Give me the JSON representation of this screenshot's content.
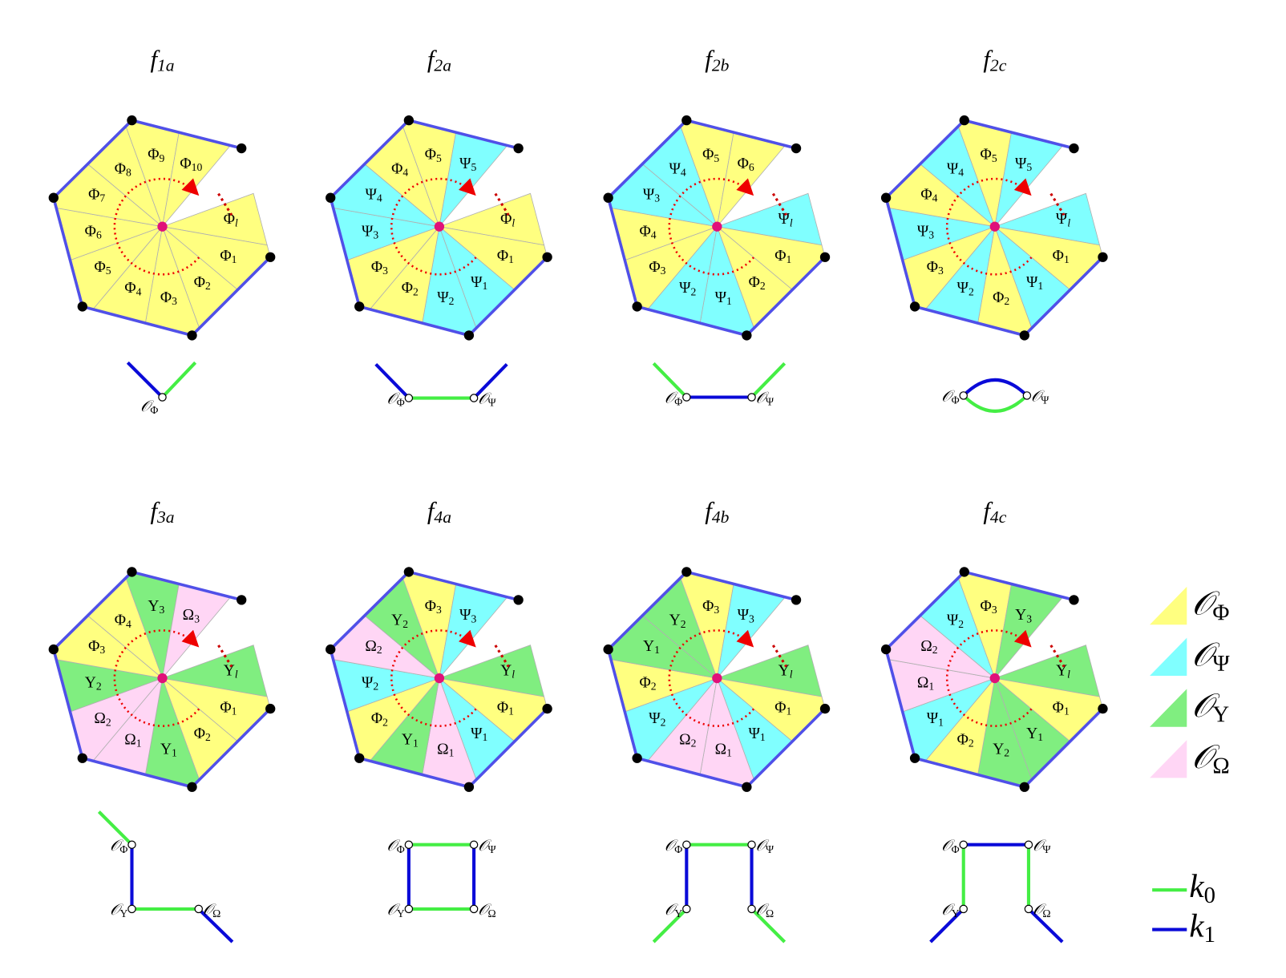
{
  "panels": [
    {
      "title": {
        "sym": "f",
        "sub": "1a"
      },
      "wedges": [
        {
          "sym": "Φ",
          "sub": "l"
        },
        {
          "sym": "Φ",
          "sub": "1"
        },
        {
          "sym": "Φ",
          "sub": "2"
        },
        {
          "sym": "Φ",
          "sub": "3"
        },
        {
          "sym": "Φ",
          "sub": "4"
        },
        {
          "sym": "Φ",
          "sub": "5"
        },
        {
          "sym": "Φ",
          "sub": "6"
        },
        {
          "sym": "Φ",
          "sub": "7"
        },
        {
          "sym": "Φ",
          "sub": "8"
        },
        {
          "sym": "Φ",
          "sub": "9"
        },
        {
          "sym": "Φ",
          "sub": "10"
        }
      ],
      "graph_nodes": [
        {
          "sym": "𝒪",
          "sub": "Φ"
        }
      ]
    },
    {
      "title": {
        "sym": "f",
        "sub": "2a"
      },
      "wedges": [
        {
          "sym": "Φ",
          "sub": "l"
        },
        {
          "sym": "Φ",
          "sub": "1"
        },
        {
          "sym": "Ψ",
          "sub": "1"
        },
        {
          "sym": "Ψ",
          "sub": "2"
        },
        {
          "sym": "Φ",
          "sub": "2"
        },
        {
          "sym": "Φ",
          "sub": "3"
        },
        {
          "sym": "Ψ",
          "sub": "3"
        },
        {
          "sym": "Ψ",
          "sub": "4"
        },
        {
          "sym": "Φ",
          "sub": "4"
        },
        {
          "sym": "Φ",
          "sub": "5"
        },
        {
          "sym": "Ψ",
          "sub": "5"
        }
      ],
      "graph_nodes": [
        {
          "sym": "𝒪",
          "sub": "Φ"
        },
        {
          "sym": "𝒪",
          "sub": "Ψ"
        }
      ]
    },
    {
      "title": {
        "sym": "f",
        "sub": "2b"
      },
      "wedges": [
        {
          "sym": "Ψ",
          "sub": "l"
        },
        {
          "sym": "Φ",
          "sub": "1"
        },
        {
          "sym": "Φ",
          "sub": "2"
        },
        {
          "sym": "Ψ",
          "sub": "1"
        },
        {
          "sym": "Ψ",
          "sub": "2"
        },
        {
          "sym": "Φ",
          "sub": "3"
        },
        {
          "sym": "Φ",
          "sub": "4"
        },
        {
          "sym": "Ψ",
          "sub": "3"
        },
        {
          "sym": "Ψ",
          "sub": "4"
        },
        {
          "sym": "Φ",
          "sub": "5"
        },
        {
          "sym": "Φ",
          "sub": "6"
        }
      ],
      "graph_nodes": [
        {
          "sym": "𝒪",
          "sub": "Φ"
        },
        {
          "sym": "𝒪",
          "sub": "Ψ"
        }
      ]
    },
    {
      "title": {
        "sym": "f",
        "sub": "2c"
      },
      "wedges": [
        {
          "sym": "Ψ",
          "sub": "l"
        },
        {
          "sym": "Φ",
          "sub": "1"
        },
        {
          "sym": "Ψ",
          "sub": "1"
        },
        {
          "sym": "Φ",
          "sub": "2"
        },
        {
          "sym": "Ψ",
          "sub": "2"
        },
        {
          "sym": "Φ",
          "sub": "3"
        },
        {
          "sym": "Ψ",
          "sub": "3"
        },
        {
          "sym": "Φ",
          "sub": "4"
        },
        {
          "sym": "Ψ",
          "sub": "4"
        },
        {
          "sym": "Φ",
          "sub": "5"
        },
        {
          "sym": "Ψ",
          "sub": "5"
        }
      ],
      "graph_nodes": [
        {
          "sym": "𝒪",
          "sub": "Φ"
        },
        {
          "sym": "𝒪",
          "sub": "Ψ"
        }
      ]
    },
    {
      "title": {
        "sym": "f",
        "sub": "3a"
      },
      "wedges": [
        {
          "sym": "Υ",
          "sub": "l"
        },
        {
          "sym": "Φ",
          "sub": "1"
        },
        {
          "sym": "Φ",
          "sub": "2"
        },
        {
          "sym": "Υ",
          "sub": "1"
        },
        {
          "sym": "Ω",
          "sub": "1"
        },
        {
          "sym": "Ω",
          "sub": "2"
        },
        {
          "sym": "Υ",
          "sub": "2"
        },
        {
          "sym": "Φ",
          "sub": "3"
        },
        {
          "sym": "Φ",
          "sub": "4"
        },
        {
          "sym": "Υ",
          "sub": "3"
        },
        {
          "sym": "Ω",
          "sub": "3"
        }
      ],
      "graph_nodes": [
        {
          "sym": "𝒪",
          "sub": "Φ"
        },
        {
          "sym": "𝒪",
          "sub": "Υ"
        },
        {
          "sym": "𝒪",
          "sub": "Ω"
        }
      ]
    },
    {
      "title": {
        "sym": "f",
        "sub": "4a"
      },
      "wedges": [
        {
          "sym": "Υ",
          "sub": "l"
        },
        {
          "sym": "Φ",
          "sub": "1"
        },
        {
          "sym": "Ψ",
          "sub": "1"
        },
        {
          "sym": "Ω",
          "sub": "1"
        },
        {
          "sym": "Υ",
          "sub": "1"
        },
        {
          "sym": "Φ",
          "sub": "2"
        },
        {
          "sym": "Ψ",
          "sub": "2"
        },
        {
          "sym": "Ω",
          "sub": "2"
        },
        {
          "sym": "Υ",
          "sub": "2"
        },
        {
          "sym": "Φ",
          "sub": "3"
        },
        {
          "sym": "Ψ",
          "sub": "3"
        }
      ],
      "graph_nodes": [
        {
          "sym": "𝒪",
          "sub": "Φ"
        },
        {
          "sym": "𝒪",
          "sub": "Ψ"
        },
        {
          "sym": "𝒪",
          "sub": "Υ"
        },
        {
          "sym": "𝒪",
          "sub": "Ω"
        }
      ]
    },
    {
      "title": {
        "sym": "f",
        "sub": "4b"
      },
      "wedges": [
        {
          "sym": "Υ",
          "sub": "l"
        },
        {
          "sym": "Φ",
          "sub": "1"
        },
        {
          "sym": "Ψ",
          "sub": "1"
        },
        {
          "sym": "Ω",
          "sub": "1"
        },
        {
          "sym": "Ω",
          "sub": "2"
        },
        {
          "sym": "Ψ",
          "sub": "2"
        },
        {
          "sym": "Φ",
          "sub": "2"
        },
        {
          "sym": "Υ",
          "sub": "1"
        },
        {
          "sym": "Υ",
          "sub": "2"
        },
        {
          "sym": "Φ",
          "sub": "3"
        },
        {
          "sym": "Ψ",
          "sub": "3"
        }
      ],
      "graph_nodes": [
        {
          "sym": "𝒪",
          "sub": "Φ"
        },
        {
          "sym": "𝒪",
          "sub": "Ψ"
        },
        {
          "sym": "𝒪",
          "sub": "Υ"
        },
        {
          "sym": "𝒪",
          "sub": "Ω"
        }
      ]
    },
    {
      "title": {
        "sym": "f",
        "sub": "4c"
      },
      "wedges": [
        {
          "sym": "Υ",
          "sub": "l"
        },
        {
          "sym": "Φ",
          "sub": "1"
        },
        {
          "sym": "Υ",
          "sub": "1"
        },
        {
          "sym": "Υ",
          "sub": "2"
        },
        {
          "sym": "Φ",
          "sub": "2"
        },
        {
          "sym": "Ψ",
          "sub": "1"
        },
        {
          "sym": "Ω",
          "sub": "1"
        },
        {
          "sym": "Ω",
          "sub": "2"
        },
        {
          "sym": "Ψ",
          "sub": "2"
        },
        {
          "sym": "Φ",
          "sub": "3"
        },
        {
          "sym": "Υ",
          "sub": "3"
        }
      ],
      "graph_nodes": [
        {
          "sym": "𝒪",
          "sub": "Φ"
        },
        {
          "sym": "𝒪",
          "sub": "Ψ"
        },
        {
          "sym": "𝒪",
          "sub": "Υ"
        },
        {
          "sym": "𝒪",
          "sub": "Ω"
        }
      ]
    }
  ],
  "legend": {
    "types": [
      {
        "sym": "𝒪",
        "sub": "Φ",
        "color": "#ffff80"
      },
      {
        "sym": "𝒪",
        "sub": "Ψ",
        "color": "#80ffff"
      },
      {
        "sym": "𝒪",
        "sub": "Υ",
        "color": "#80ee80"
      },
      {
        "sym": "𝒪",
        "sub": "Ω",
        "color": "#ffd6f5"
      }
    ],
    "edges": [
      {
        "sym": "k",
        "sub": "0",
        "color": "#44ee44"
      },
      {
        "sym": "k",
        "sub": "1",
        "color": "#0a0ad8"
      }
    ]
  }
}
